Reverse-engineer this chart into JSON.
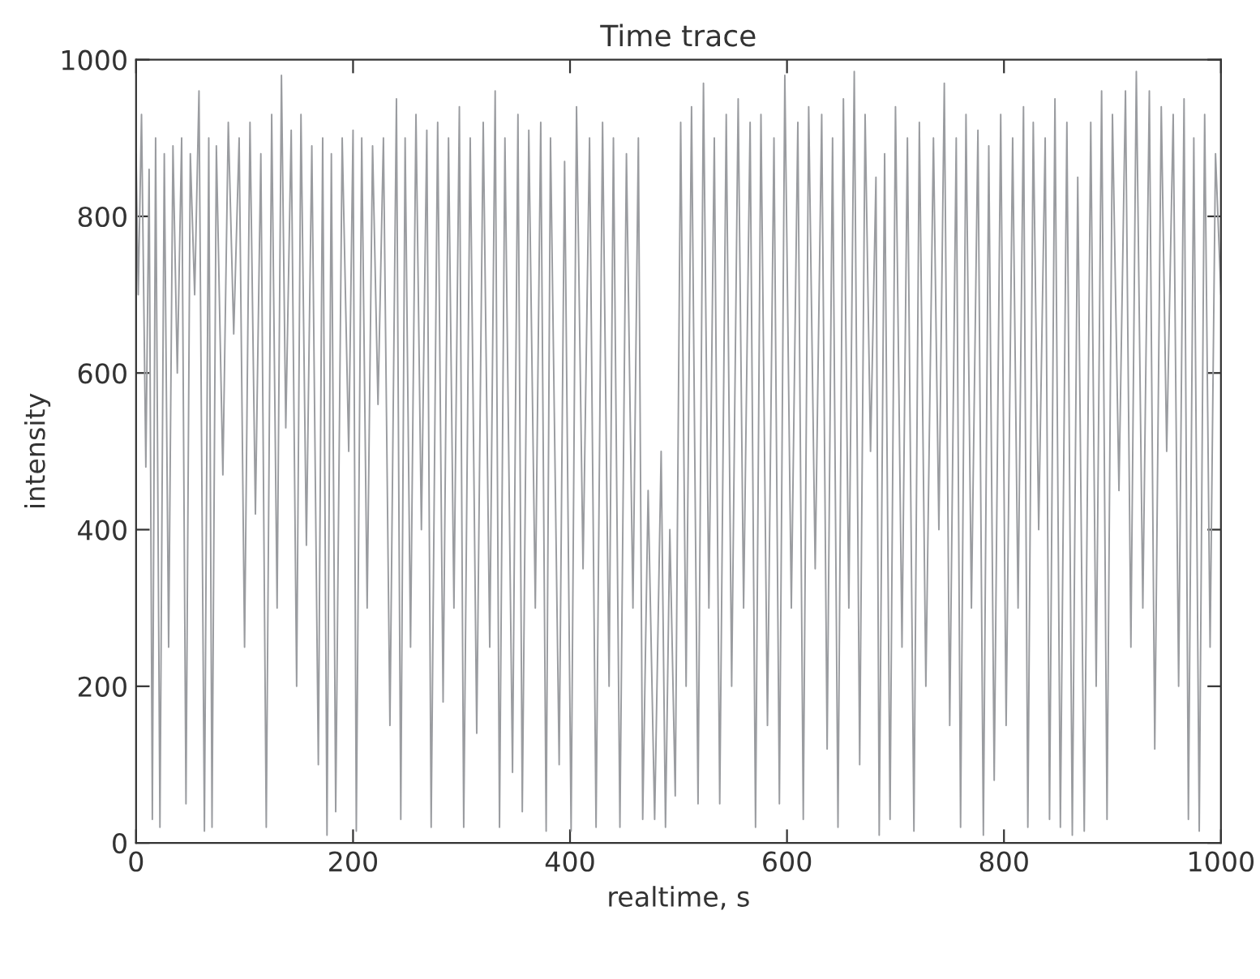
{
  "chart_data": {
    "type": "line",
    "title": "Time trace",
    "xlabel": "realtime, s",
    "ylabel": "intensity",
    "xlim": [
      0,
      1000
    ],
    "ylim": [
      0,
      1000
    ],
    "xticks": [
      0,
      200,
      400,
      600,
      800,
      1000
    ],
    "yticks": [
      0,
      200,
      400,
      600,
      800,
      1000
    ],
    "grid": false,
    "legend": false,
    "marker": "none",
    "line_style": "solid",
    "series": [
      {
        "color": "#9a9ca0",
        "x": [
          0,
          2,
          5,
          9,
          12,
          15,
          18,
          22,
          26,
          30,
          34,
          38,
          42,
          46,
          50,
          54,
          58,
          63,
          67,
          70,
          74,
          80,
          85,
          90,
          95,
          100,
          105,
          110,
          115,
          120,
          125,
          130,
          134,
          138,
          143,
          148,
          152,
          157,
          162,
          168,
          172,
          176,
          180,
          184,
          190,
          196,
          200,
          203,
          208,
          213,
          218,
          223,
          228,
          234,
          240,
          244,
          248,
          253,
          258,
          263,
          268,
          272,
          278,
          283,
          288,
          293,
          298,
          302,
          308,
          314,
          320,
          326,
          331,
          335,
          340,
          347,
          352,
          356,
          362,
          368,
          373,
          378,
          382,
          390,
          395,
          401,
          406,
          412,
          418,
          424,
          430,
          436,
          440,
          446,
          452,
          458,
          463,
          467,
          472,
          478,
          484,
          488,
          492,
          497,
          502,
          507,
          512,
          518,
          523,
          528,
          533,
          538,
          544,
          549,
          555,
          560,
          566,
          571,
          576,
          582,
          588,
          593,
          598,
          604,
          610,
          615,
          620,
          626,
          632,
          637,
          642,
          647,
          652,
          657,
          662,
          667,
          672,
          677,
          682,
          685,
          690,
          695,
          700,
          706,
          711,
          717,
          722,
          728,
          735,
          740,
          745,
          750,
          756,
          760,
          765,
          770,
          776,
          781,
          786,
          791,
          797,
          802,
          808,
          813,
          818,
          822,
          827,
          832,
          838,
          842,
          847,
          852,
          858,
          863,
          868,
          874,
          880,
          885,
          890,
          895,
          900,
          906,
          912,
          917,
          922,
          928,
          934,
          939,
          945,
          950,
          956,
          961,
          966,
          970,
          975,
          980,
          985,
          990,
          995,
          1000
        ],
        "values": [
          880,
          700,
          930,
          480,
          860,
          30,
          900,
          20,
          880,
          250,
          890,
          600,
          900,
          50,
          880,
          700,
          960,
          15,
          900,
          20,
          890,
          470,
          920,
          650,
          900,
          250,
          920,
          420,
          880,
          20,
          930,
          300,
          980,
          530,
          910,
          200,
          930,
          380,
          890,
          100,
          900,
          10,
          880,
          40,
          900,
          500,
          910,
          15,
          900,
          300,
          890,
          560,
          900,
          150,
          950,
          30,
          900,
          250,
          930,
          400,
          910,
          20,
          920,
          180,
          900,
          300,
          940,
          20,
          900,
          140,
          920,
          250,
          960,
          20,
          900,
          90,
          930,
          40,
          910,
          300,
          920,
          15,
          900,
          100,
          870,
          15,
          940,
          350,
          900,
          20,
          920,
          200,
          900,
          20,
          880,
          300,
          900,
          30,
          450,
          30,
          500,
          20,
          400,
          60,
          920,
          200,
          940,
          50,
          970,
          300,
          900,
          50,
          930,
          200,
          950,
          300,
          920,
          20,
          930,
          150,
          900,
          50,
          980,
          300,
          920,
          30,
          940,
          350,
          930,
          120,
          900,
          20,
          950,
          300,
          985,
          100,
          930,
          500,
          850,
          10,
          880,
          30,
          940,
          250,
          900,
          15,
          920,
          200,
          900,
          400,
          970,
          150,
          900,
          20,
          930,
          300,
          910,
          10,
          890,
          80,
          930,
          150,
          900,
          300,
          940,
          20,
          920,
          400,
          900,
          30,
          950,
          20,
          920,
          10,
          850,
          15,
          920,
          200,
          960,
          30,
          930,
          450,
          960,
          250,
          985,
          300,
          960,
          120,
          940,
          500,
          930,
          200,
          950,
          30,
          900,
          15,
          930,
          250,
          880,
          700
        ]
      }
    ]
  }
}
